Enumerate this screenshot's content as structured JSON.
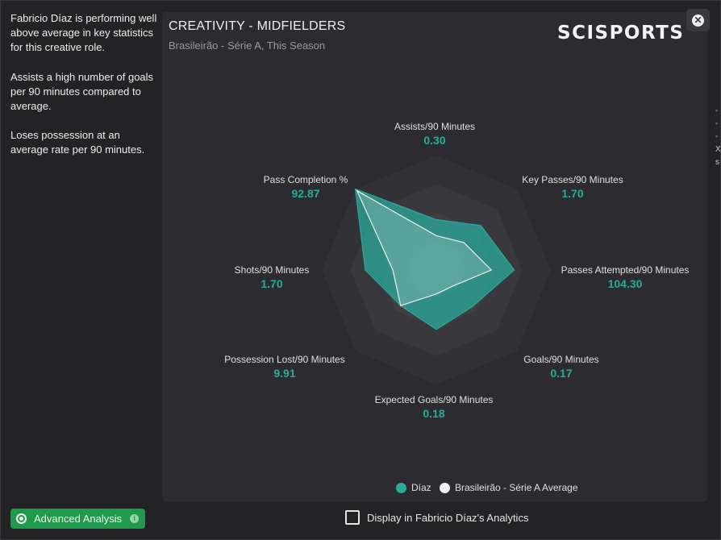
{
  "sidebar": {
    "insights": [
      "Fabricio Díaz is performing well above average in key statistics for this creative role.",
      "Assists a high number of goals per 90 minutes compared to average.",
      "Loses possession at an average rate per 90 minutes."
    ],
    "advanced_button": "Advanced Analysis",
    "info_icon": "i"
  },
  "panel": {
    "title": "CREATIVITY - MIDFIELDERS",
    "subtitle": "Brasileirão - Série A, This Season",
    "brand": "SCISPORTS",
    "close_icon": "✕"
  },
  "chart_data": {
    "type": "radar",
    "axes": [
      {
        "label": "Assists/90 Minutes",
        "value": "0.30"
      },
      {
        "label": "Key Passes/90 Minutes",
        "value": "1.70"
      },
      {
        "label": "Passes Attempted/90 Minutes",
        "value": "104.30"
      },
      {
        "label": "Goals/90 Minutes",
        "value": "0.17"
      },
      {
        "label": "Expected Goals/90 Minutes",
        "value": "0.18"
      },
      {
        "label": "Possession Lost/90 Minutes",
        "value": "9.91"
      },
      {
        "label": "Shots/90 Minutes",
        "value": "1.70"
      },
      {
        "label": "Pass Completion %",
        "value": "92.87"
      }
    ],
    "series": [
      {
        "name": "Díaz",
        "color": "#2ba99b",
        "normalized": [
          0.44,
          0.55,
          0.68,
          0.45,
          0.52,
          0.44,
          0.62,
          1.0
        ]
      },
      {
        "name": "Brasileirão - Série A Average",
        "color": "#f0f0f0",
        "normalized": [
          0.3,
          0.34,
          0.48,
          0.2,
          0.21,
          0.44,
          0.38,
          0.98
        ]
      }
    ],
    "rings": 4
  },
  "footer": {
    "display_label": "Display in Fabricio Díaz's Analytics"
  },
  "edge": [
    "-",
    "-",
    "-",
    "X",
    "s"
  ]
}
